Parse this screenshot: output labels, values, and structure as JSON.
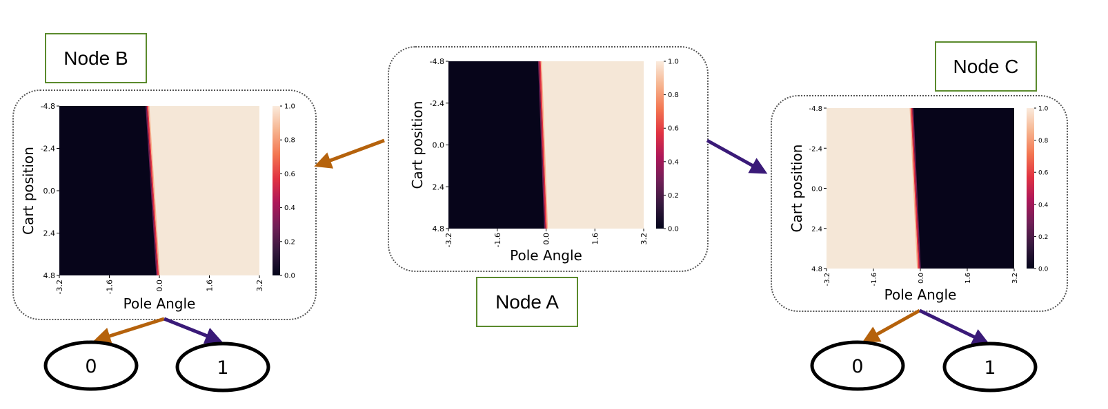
{
  "colors": {
    "dark": "#07051a",
    "light": "#f5e7d7",
    "left_arrow": "#b5620c",
    "right_arrow": "#3a1a78",
    "node_border": "#5a8a2c",
    "colormap": [
      "#03051a",
      "#35193e",
      "#701f57",
      "#ad1759",
      "#e13342",
      "#f37651",
      "#f6b48f",
      "#faebdd"
    ]
  },
  "icons": [
    "arrow-left-icon",
    "arrow-right-icon"
  ],
  "nodes": {
    "a": {
      "label": "Node A"
    },
    "b": {
      "label": "Node B"
    },
    "c": {
      "label": "Node C"
    }
  },
  "leaves": {
    "b_left": "0",
    "b_right": "1",
    "c_left": "0",
    "c_right": "1"
  },
  "chart_data": [
    {
      "id": "node-a",
      "type": "heatmap",
      "xlabel": "Pole Angle",
      "ylabel": "Cart position",
      "xticks": [
        "-3.2",
        "-1.6",
        "0.0",
        "1.6",
        "3.2"
      ],
      "yticks": [
        "-4.8",
        "-2.4",
        "0.0",
        "2.4",
        "4.8"
      ],
      "xlim": [
        -3.2,
        3.2
      ],
      "ylim": [
        -4.8,
        4.8
      ],
      "colorbar_ticks": [
        "0.0",
        "0.2",
        "0.4",
        "0.6",
        "0.8",
        "1.0"
      ],
      "boundary": {
        "at_y_min": -0.2,
        "at_y_max": 0.0
      },
      "left_value": 0.0,
      "right_value": 1.0
    },
    {
      "id": "node-b",
      "type": "heatmap",
      "xlabel": "Pole Angle",
      "ylabel": "Cart position",
      "xticks": [
        "-3.2",
        "-1.6",
        "0.0",
        "1.6",
        "3.2"
      ],
      "yticks": [
        "-4.8",
        "-2.4",
        "0.0",
        "2.4",
        "4.8"
      ],
      "xlim": [
        -3.2,
        3.2
      ],
      "ylim": [
        -4.8,
        4.8
      ],
      "colorbar_ticks": [
        "0.0",
        "0.2",
        "0.4",
        "0.6",
        "0.8",
        "1.0"
      ],
      "boundary": {
        "at_y_min": -0.38,
        "at_y_max": -0.04
      },
      "left_value": 0.0,
      "right_value": 1.0
    },
    {
      "id": "node-c",
      "type": "heatmap",
      "xlabel": "Pole Angle",
      "ylabel": "Cart position",
      "xticks": [
        "-3.2",
        "-1.6",
        "0.0",
        "1.6",
        "3.2"
      ],
      "yticks": [
        "-4.8",
        "-2.4",
        "0.0",
        "2.4",
        "4.8"
      ],
      "xlim": [
        -3.2,
        3.2
      ],
      "ylim": [
        -4.8,
        4.8
      ],
      "colorbar_ticks": [
        "0.0",
        "0.2",
        "0.4",
        "0.6",
        "0.8",
        "1.0"
      ],
      "boundary": {
        "at_y_min": -0.3,
        "at_y_max": -0.05
      },
      "left_value": 1.0,
      "right_value": 0.0
    }
  ]
}
